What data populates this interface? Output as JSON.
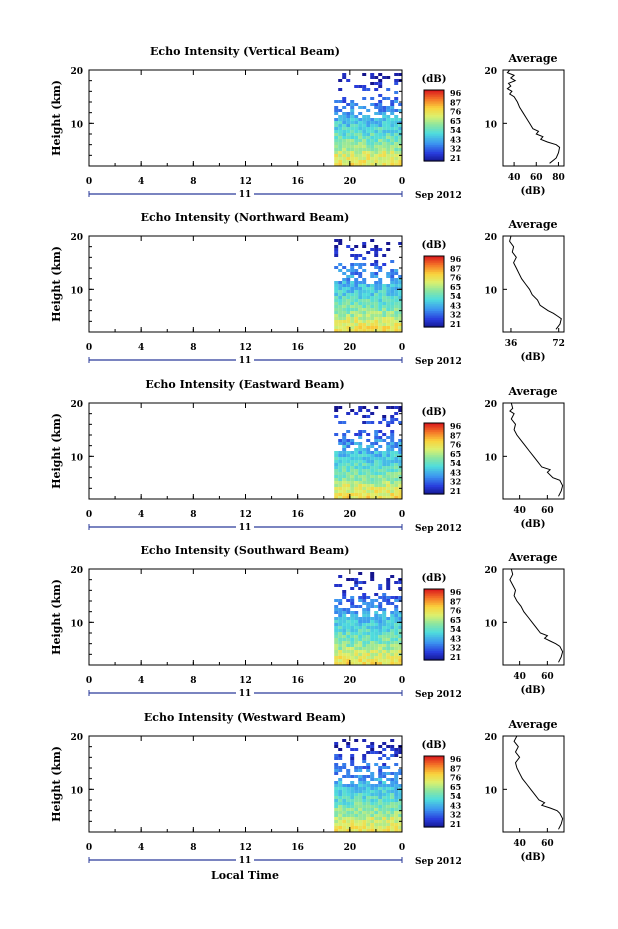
{
  "chart_data": [
    {
      "type": "heatmap",
      "title": "Echo Intensity (Vertical Beam)",
      "ylabel": "Height (km)",
      "x_ticks": [
        "0",
        "4",
        "8",
        "12",
        "16",
        "20",
        "0"
      ],
      "y_ticks": [
        "20",
        "10"
      ],
      "date_label": "11",
      "date_suffix": "Sep 2012",
      "xlim_hours": [
        0,
        24
      ],
      "ylim_km": [
        2,
        20
      ],
      "data_start_hour": 18.8,
      "colorbar": {
        "unit": "(dB)",
        "ticks": [
          "96",
          "87",
          "76",
          "65",
          "54",
          "43",
          "32",
          "21"
        ]
      },
      "average": {
        "title": "Average",
        "xlabel": "(dB)",
        "x_ticks": [
          "40",
          "60",
          "80"
        ],
        "x_tick_values": [
          40,
          60,
          80
        ],
        "xlim": [
          30,
          85
        ],
        "y_ticks": [
          "20",
          "10"
        ],
        "profile": [
          [
            2.5,
            72
          ],
          [
            3.5,
            78
          ],
          [
            4.5,
            80
          ],
          [
            5.5,
            81
          ],
          [
            6,
            78
          ],
          [
            6.5,
            70
          ],
          [
            7,
            64
          ],
          [
            7.5,
            66
          ],
          [
            8,
            60
          ],
          [
            8.5,
            62
          ],
          [
            9,
            57
          ],
          [
            10,
            54
          ],
          [
            11,
            51
          ],
          [
            12,
            48
          ],
          [
            13,
            45
          ],
          [
            14,
            43
          ],
          [
            15,
            40
          ],
          [
            15.5,
            36
          ],
          [
            16,
            38
          ],
          [
            16.5,
            34
          ],
          [
            17,
            37
          ],
          [
            17.5,
            35
          ],
          [
            18,
            41
          ],
          [
            18.5,
            37
          ],
          [
            19,
            40
          ],
          [
            19.5,
            34
          ],
          [
            20,
            36
          ]
        ]
      }
    },
    {
      "type": "heatmap",
      "title": "Echo Intensity (Northward Beam)",
      "ylabel": "Height (km)",
      "x_ticks": [
        "0",
        "4",
        "8",
        "12",
        "16",
        "20",
        "0"
      ],
      "y_ticks": [
        "20",
        "10"
      ],
      "date_label": "11",
      "date_suffix": "Sep 2012",
      "xlim_hours": [
        0,
        24
      ],
      "ylim_km": [
        2,
        20
      ],
      "data_start_hour": 18.8,
      "colorbar": {
        "unit": "(dB)",
        "ticks": [
          "96",
          "87",
          "76",
          "65",
          "54",
          "43",
          "32",
          "21"
        ]
      },
      "average": {
        "title": "Average",
        "xlabel": "(dB)",
        "x_ticks": [
          "36",
          "72"
        ],
        "x_tick_values": [
          36,
          72
        ],
        "xlim": [
          30,
          76
        ],
        "y_ticks": [
          "20",
          "10"
        ],
        "profile": [
          [
            2.5,
            70
          ],
          [
            3.5,
            73
          ],
          [
            4.5,
            74
          ],
          [
            5,
            71
          ],
          [
            5.5,
            68
          ],
          [
            6,
            64
          ],
          [
            7,
            58
          ],
          [
            8,
            56
          ],
          [
            9,
            52
          ],
          [
            10,
            50
          ],
          [
            11,
            47
          ],
          [
            12,
            44
          ],
          [
            13,
            42
          ],
          [
            14,
            40
          ],
          [
            15,
            38
          ],
          [
            16,
            40
          ],
          [
            17,
            37
          ],
          [
            18,
            38
          ],
          [
            19,
            35
          ],
          [
            20,
            36
          ]
        ]
      }
    },
    {
      "type": "heatmap",
      "title": "Echo Intensity (Eastward Beam)",
      "ylabel": "Height (km)",
      "x_ticks": [
        "0",
        "4",
        "8",
        "12",
        "16",
        "20",
        "0"
      ],
      "y_ticks": [
        "20",
        "10"
      ],
      "date_label": "11",
      "date_suffix": "Sep 2012",
      "xlim_hours": [
        0,
        24
      ],
      "ylim_km": [
        2,
        20
      ],
      "data_start_hour": 18.8,
      "colorbar": {
        "unit": "(dB)",
        "ticks": [
          "96",
          "87",
          "76",
          "65",
          "54",
          "43",
          "32",
          "21"
        ]
      },
      "average": {
        "title": "Average",
        "xlabel": "(dB)",
        "x_ticks": [
          "40",
          "60"
        ],
        "x_tick_values": [
          40,
          60
        ],
        "xlim": [
          28,
          72
        ],
        "y_ticks": [
          "20",
          "10"
        ],
        "profile": [
          [
            2.5,
            68
          ],
          [
            3.5,
            70
          ],
          [
            4.5,
            71
          ],
          [
            5.5,
            69
          ],
          [
            6,
            64
          ],
          [
            7,
            60
          ],
          [
            7.5,
            62
          ],
          [
            8,
            56
          ],
          [
            9,
            53
          ],
          [
            10,
            50
          ],
          [
            11,
            47
          ],
          [
            12,
            44
          ],
          [
            13,
            41
          ],
          [
            14,
            38
          ],
          [
            15,
            36
          ],
          [
            16,
            37
          ],
          [
            17,
            34
          ],
          [
            18,
            36
          ],
          [
            18.5,
            33
          ],
          [
            19,
            35
          ],
          [
            20,
            34
          ]
        ]
      }
    },
    {
      "type": "heatmap",
      "title": "Echo Intensity (Southward Beam)",
      "ylabel": "Height (km)",
      "x_ticks": [
        "0",
        "4",
        "8",
        "12",
        "16",
        "20",
        "0"
      ],
      "y_ticks": [
        "20",
        "10"
      ],
      "date_label": "11",
      "date_suffix": "Sep 2012",
      "xlim_hours": [
        0,
        24
      ],
      "ylim_km": [
        2,
        20
      ],
      "data_start_hour": 18.8,
      "colorbar": {
        "unit": "(dB)",
        "ticks": [
          "96",
          "87",
          "76",
          "65",
          "54",
          "43",
          "32",
          "21"
        ]
      },
      "average": {
        "title": "Average",
        "xlabel": "(dB)",
        "x_ticks": [
          "40",
          "60"
        ],
        "x_tick_values": [
          40,
          60
        ],
        "xlim": [
          28,
          72
        ],
        "y_ticks": [
          "20",
          "10"
        ],
        "profile": [
          [
            2.5,
            68
          ],
          [
            3.5,
            70
          ],
          [
            4.5,
            71
          ],
          [
            5.5,
            69
          ],
          [
            6,
            66
          ],
          [
            6.5,
            62
          ],
          [
            7,
            58
          ],
          [
            7.5,
            60
          ],
          [
            8,
            55
          ],
          [
            9,
            52
          ],
          [
            10,
            49
          ],
          [
            11,
            46
          ],
          [
            12,
            43
          ],
          [
            13,
            41
          ],
          [
            14,
            38
          ],
          [
            15,
            36
          ],
          [
            16,
            37
          ],
          [
            17,
            35
          ],
          [
            18,
            33
          ],
          [
            19,
            35
          ],
          [
            20,
            34
          ]
        ]
      }
    },
    {
      "type": "heatmap",
      "title": "Echo Intensity (Westward Beam)",
      "ylabel": "Height (km)",
      "x_ticks": [
        "0",
        "4",
        "8",
        "12",
        "16",
        "20",
        "0"
      ],
      "y_ticks": [
        "20",
        "10"
      ],
      "date_label": "11",
      "date_suffix": "Sep 2012",
      "xlim_hours": [
        0,
        24
      ],
      "ylim_km": [
        2,
        20
      ],
      "data_start_hour": 18.8,
      "colorbar": {
        "unit": "(dB)",
        "ticks": [
          "96",
          "87",
          "76",
          "65",
          "54",
          "43",
          "32",
          "21"
        ]
      },
      "average": {
        "title": "Average",
        "xlabel": "(dB)",
        "x_ticks": [
          "40",
          "60"
        ],
        "x_tick_values": [
          40,
          60
        ],
        "xlim": [
          28,
          72
        ],
        "y_ticks": [
          "20",
          "10"
        ],
        "profile": [
          [
            2.5,
            68
          ],
          [
            3.5,
            70
          ],
          [
            4.5,
            71
          ],
          [
            5.5,
            69
          ],
          [
            6,
            67
          ],
          [
            6.5,
            62
          ],
          [
            7,
            56
          ],
          [
            7.5,
            58
          ],
          [
            8,
            54
          ],
          [
            9,
            51
          ],
          [
            10,
            48
          ],
          [
            11,
            45
          ],
          [
            12,
            42
          ],
          [
            13,
            40
          ],
          [
            14,
            38
          ],
          [
            15,
            37
          ],
          [
            16,
            40
          ],
          [
            17,
            37
          ],
          [
            18,
            39
          ],
          [
            19,
            36
          ],
          [
            20,
            38
          ]
        ]
      }
    }
  ],
  "footer": {
    "xlabel": "Local Time"
  }
}
